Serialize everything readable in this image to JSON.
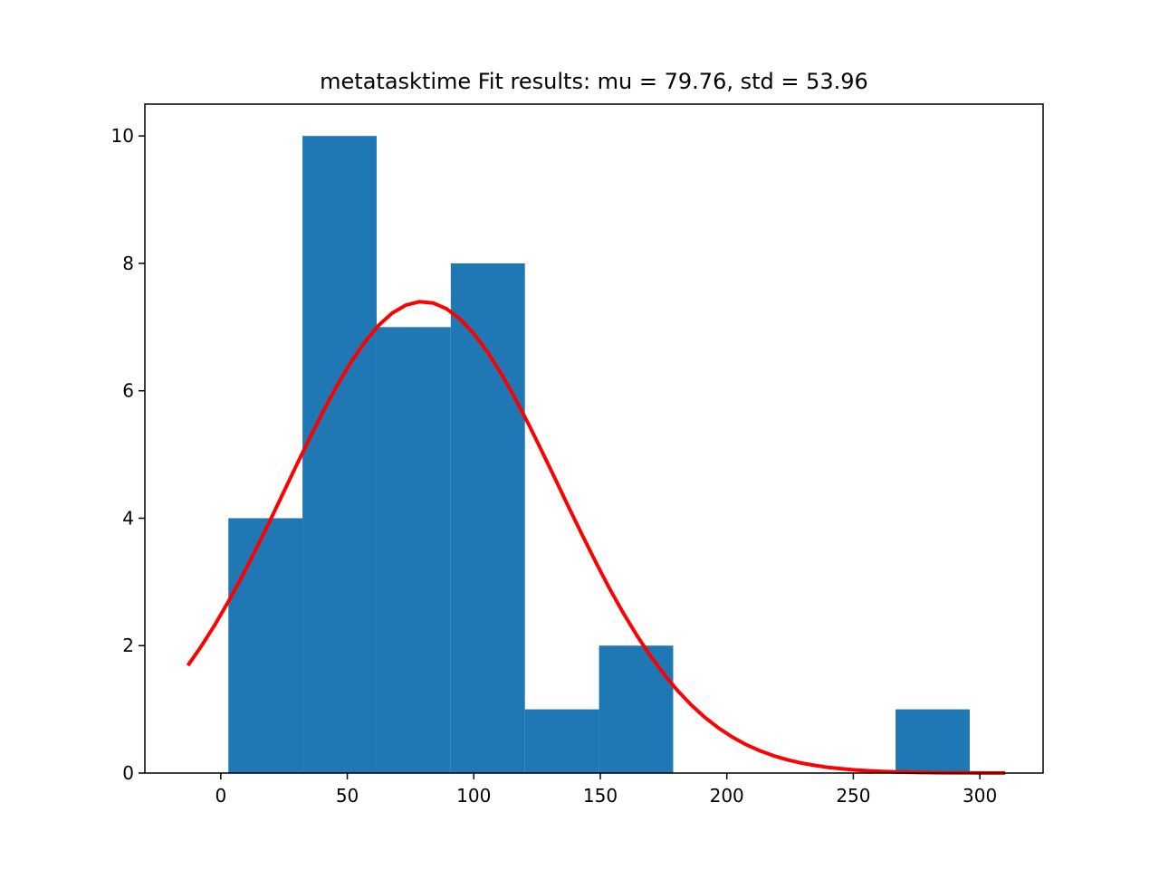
{
  "chart_data": {
    "type": "bar",
    "title": "metatasktime Fit results: mu = 79.76,  std = 53.96",
    "xlabel": "",
    "ylabel": "",
    "xlim": [
      -30,
      325
    ],
    "ylim": [
      0,
      10.5
    ],
    "xticks": [
      0,
      50,
      100,
      150,
      200,
      250,
      300
    ],
    "yticks": [
      0,
      2,
      4,
      6,
      8,
      10
    ],
    "grid": false,
    "histogram": {
      "color": "#1f77b4",
      "bin_edges": [
        3.0,
        32.3,
        61.6,
        90.9,
        120.2,
        149.5,
        178.8,
        208.1,
        237.4,
        266.7,
        296.0
      ],
      "counts": [
        4,
        10,
        7,
        8,
        1,
        2,
        0,
        0,
        0,
        1
      ]
    },
    "fit_curve": {
      "type": "line",
      "color": "#ff0000",
      "mu": 79.76,
      "std": 53.96,
      "x_range": [
        -13,
        310
      ],
      "peak": 7.4
    }
  }
}
